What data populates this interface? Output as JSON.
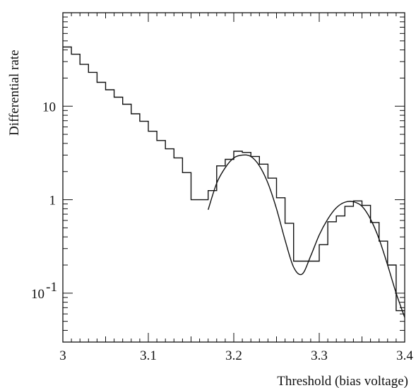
{
  "chart_data": {
    "type": "line",
    "title": "",
    "xlabel": "Threshold (bias voltage)",
    "ylabel": "Differential rate",
    "xlim": [
      3.0,
      3.4
    ],
    "ylim": [
      0.03,
      100
    ],
    "yscale": "log",
    "grid": false,
    "legend": "none",
    "x_ticks": [
      {
        "value": 3.0,
        "label": "3"
      },
      {
        "value": 3.1,
        "label": "3.1"
      },
      {
        "value": 3.2,
        "label": "3.2"
      },
      {
        "value": 3.3,
        "label": "3.3"
      },
      {
        "value": 3.4,
        "label": "3.4"
      }
    ],
    "y_ticks": [
      {
        "value": 10,
        "label": "10"
      },
      {
        "value": 1,
        "label": "1"
      },
      {
        "value": 0.1,
        "label": "10",
        "exponent": "-1"
      }
    ],
    "series": [
      {
        "kind": "histogram",
        "bin_width": 0.01,
        "x": [
          3.0,
          3.01,
          3.02,
          3.03,
          3.04,
          3.05,
          3.06,
          3.07,
          3.08,
          3.09,
          3.1,
          3.11,
          3.12,
          3.13,
          3.14,
          3.15,
          3.16,
          3.17,
          3.18,
          3.19,
          3.2,
          3.21,
          3.22,
          3.23,
          3.24,
          3.25,
          3.26,
          3.27,
          3.28,
          3.29,
          3.3,
          3.31,
          3.32,
          3.33,
          3.34,
          3.35,
          3.36,
          3.37,
          3.38,
          3.39
        ],
        "values": [
          43,
          36,
          28,
          23,
          18,
          15,
          12.5,
          10.5,
          8.3,
          6.9,
          5.4,
          4.3,
          3.5,
          2.8,
          1.95,
          1.0,
          1.0,
          1.25,
          2.3,
          2.7,
          3.3,
          3.2,
          2.9,
          2.4,
          1.7,
          1.05,
          0.56,
          0.22,
          0.22,
          0.22,
          0.33,
          0.58,
          0.67,
          0.85,
          0.97,
          0.87,
          0.57,
          0.36,
          0.2,
          0.065
        ]
      },
      {
        "kind": "fit",
        "x": [
          3.17,
          3.18,
          3.19,
          3.2,
          3.21,
          3.22,
          3.23,
          3.24,
          3.25,
          3.26,
          3.27,
          3.28,
          3.29,
          3.3,
          3.31,
          3.32,
          3.33,
          3.34,
          3.35,
          3.36,
          3.37,
          3.38,
          3.39,
          3.4
        ],
        "values": [
          0.78,
          1.5,
          2.2,
          2.8,
          3.0,
          2.9,
          2.3,
          1.5,
          0.8,
          0.37,
          0.19,
          0.16,
          0.25,
          0.42,
          0.62,
          0.82,
          0.94,
          0.95,
          0.85,
          0.62,
          0.38,
          0.2,
          0.1,
          0.055
        ]
      }
    ]
  }
}
